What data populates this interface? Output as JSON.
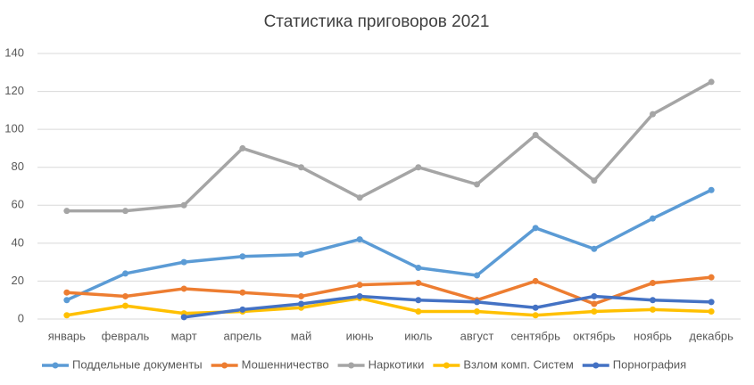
{
  "chart_data": {
    "type": "line",
    "title": "Статистика приговоров 2021",
    "categories": [
      "январь",
      "февраль",
      "март",
      "апрель",
      "май",
      "июнь",
      "июль",
      "август",
      "сентябрь",
      "октябрь",
      "ноябрь",
      "декабрь"
    ],
    "series": [
      {
        "name": "Поддельные документы",
        "color": "#5b9bd5",
        "values": [
          10,
          24,
          30,
          33,
          34,
          42,
          27,
          23,
          48,
          37,
          53,
          68
        ]
      },
      {
        "name": "Мошенничество",
        "color": "#ed7d31",
        "values": [
          14,
          12,
          16,
          14,
          12,
          18,
          19,
          10,
          20,
          8,
          19,
          22
        ]
      },
      {
        "name": "Наркотики",
        "color": "#a5a5a5",
        "values": [
          57,
          57,
          60,
          90,
          80,
          64,
          80,
          71,
          97,
          73,
          108,
          125
        ]
      },
      {
        "name": "Взлом комп. Систем",
        "color": "#ffc000",
        "values": [
          2,
          7,
          3,
          4,
          6,
          11,
          4,
          4,
          2,
          4,
          5,
          4
        ]
      },
      {
        "name": "Порнография",
        "color": "#4472c4",
        "values": [
          null,
          null,
          1,
          5,
          8,
          12,
          10,
          9,
          6,
          12,
          10,
          9
        ]
      }
    ],
    "ylim": [
      0,
      140
    ],
    "yticks": [
      0,
      20,
      40,
      60,
      80,
      100,
      120,
      140
    ],
    "grid": true,
    "legend": "bottom"
  }
}
